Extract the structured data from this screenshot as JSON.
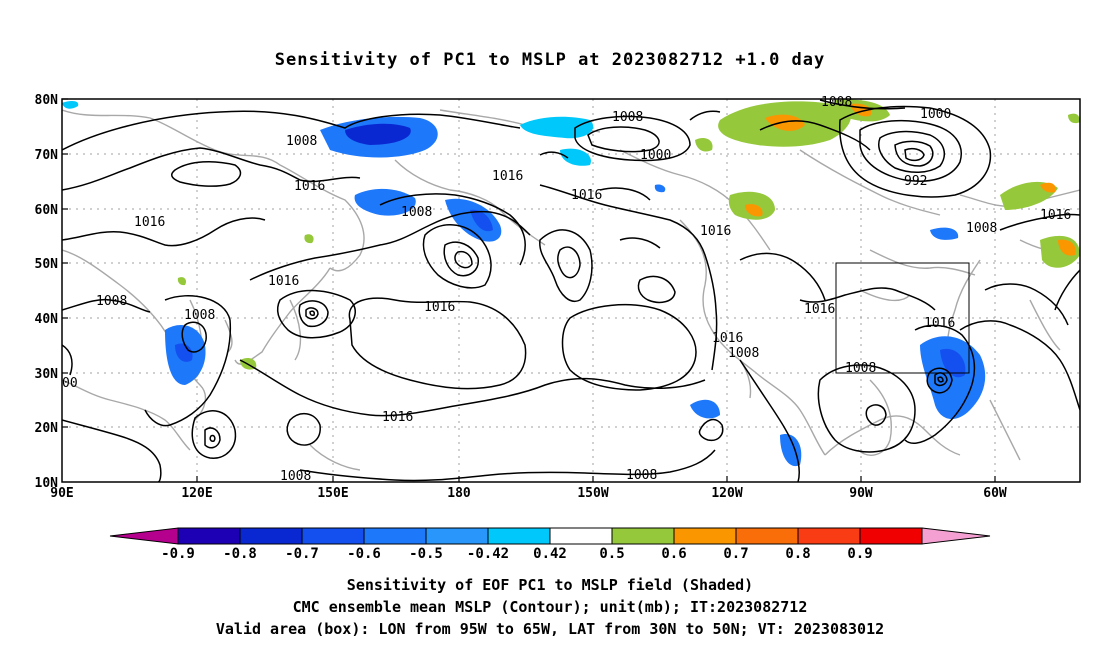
{
  "title": "Sensitivity of PC1 to MSLP at 2023082712 +1.0 day",
  "lat_labels": [
    "80N",
    "70N",
    "60N",
    "50N",
    "40N",
    "30N",
    "20N",
    "10N"
  ],
  "lon_labels": [
    "90E",
    "120E",
    "150E",
    "180",
    "150W",
    "120W",
    "90W",
    "60W"
  ],
  "contour_labels": [
    "1008",
    "1016",
    "1016",
    "1016",
    "1008",
    "1016",
    "1008",
    "1016",
    "1008",
    "1016",
    "1016",
    "1016",
    "1008",
    "1008",
    "1016",
    "1016",
    "1016",
    "1008",
    "1008",
    "1000",
    "1008",
    "1000",
    "992",
    "1016",
    "1008",
    "1016",
    "1008",
    "00"
  ],
  "colorbar": {
    "labels": [
      "-0.9",
      "-0.8",
      "-0.7",
      "-0.6",
      "-0.5",
      "-0.42",
      "0.42",
      "0.5",
      "0.6",
      "0.7",
      "0.8",
      "0.9"
    ],
    "colors": [
      "#b4008c",
      "#1e00b4",
      "#0a28d2",
      "#1450f0",
      "#1e78fa",
      "#2896fa",
      "#00c8fa",
      "#ffffff",
      "#96c83c",
      "#fa9600",
      "#fa6e0a",
      "#fa3c14",
      "#f00000",
      "#f5a0d2"
    ]
  },
  "captions": [
    "Sensitivity of EOF PC1 to MSLP field (Shaded)",
    "CMC ensemble mean MSLP (Contour); unit(mb); IT:2023082712",
    "Valid area (box): LON from 95W to 65W, LAT from 30N to 50N; VT: 2023083012"
  ]
}
